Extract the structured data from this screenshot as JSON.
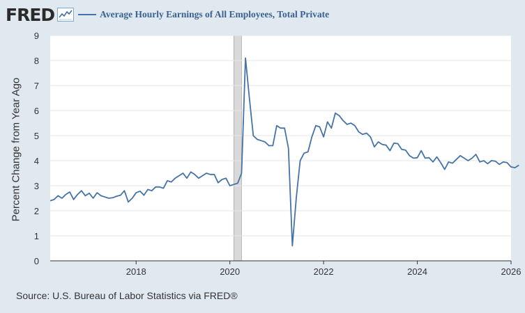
{
  "header": {
    "logo": "FRED",
    "series_title": "Average Hourly Earnings of All Employees, Total Private"
  },
  "source": "Source: U.S. Bureau of Labor Statistics via FRED®",
  "colors": {
    "line": "#4572a7",
    "background": "#e1e9f0",
    "plot": "#ffffff",
    "recession": "#d9d9d9"
  },
  "chart_data": {
    "type": "line",
    "title": "",
    "ylabel": "Percent Change from Year Ago",
    "xlabel": "",
    "x_start": "2016-03",
    "frequency": "monthly",
    "xlim": [
      "2016-03",
      "2026-01"
    ],
    "ylim": [
      0,
      9
    ],
    "x_ticks": [
      "2018",
      "2020",
      "2022",
      "2024",
      "2026"
    ],
    "y_ticks": [
      "0",
      "1",
      "2",
      "3",
      "4",
      "5",
      "6",
      "7",
      "8",
      "9"
    ],
    "grid": "horizontal",
    "recession_shading": {
      "start": "2020-02",
      "end": "2020-04"
    },
    "series": [
      {
        "name": "Average Hourly Earnings of All Employees, Total Private",
        "values": [
          2.4,
          2.45,
          2.6,
          2.5,
          2.65,
          2.75,
          2.45,
          2.65,
          2.8,
          2.6,
          2.7,
          2.5,
          2.72,
          2.6,
          2.55,
          2.5,
          2.52,
          2.58,
          2.62,
          2.8,
          2.35,
          2.5,
          2.72,
          2.78,
          2.62,
          2.85,
          2.8,
          2.95,
          2.95,
          2.9,
          3.2,
          3.15,
          3.3,
          3.4,
          3.5,
          3.3,
          3.55,
          3.45,
          3.3,
          3.4,
          3.5,
          3.45,
          3.45,
          3.12,
          3.25,
          3.3,
          3.0,
          3.05,
          3.1,
          3.5,
          8.1,
          6.5,
          5.0,
          4.85,
          4.8,
          4.75,
          4.6,
          4.6,
          5.4,
          5.3,
          5.3,
          4.5,
          0.6,
          2.5,
          4.0,
          4.3,
          4.35,
          4.95,
          5.4,
          5.35,
          4.95,
          5.55,
          5.3,
          5.9,
          5.8,
          5.6,
          5.45,
          5.5,
          5.4,
          5.15,
          5.05,
          5.1,
          4.95,
          4.55,
          4.75,
          4.65,
          4.62,
          4.4,
          4.7,
          4.68,
          4.45,
          4.42,
          4.2,
          4.1,
          4.12,
          4.4,
          4.1,
          4.12,
          3.95,
          4.15,
          3.92,
          3.65,
          3.95,
          3.9,
          4.05,
          4.2,
          4.1,
          4.0,
          4.1,
          4.25,
          3.95,
          4.0,
          3.88,
          4.0,
          3.98,
          3.85,
          3.95,
          3.92,
          3.75,
          3.72,
          3.82
        ]
      }
    ]
  }
}
